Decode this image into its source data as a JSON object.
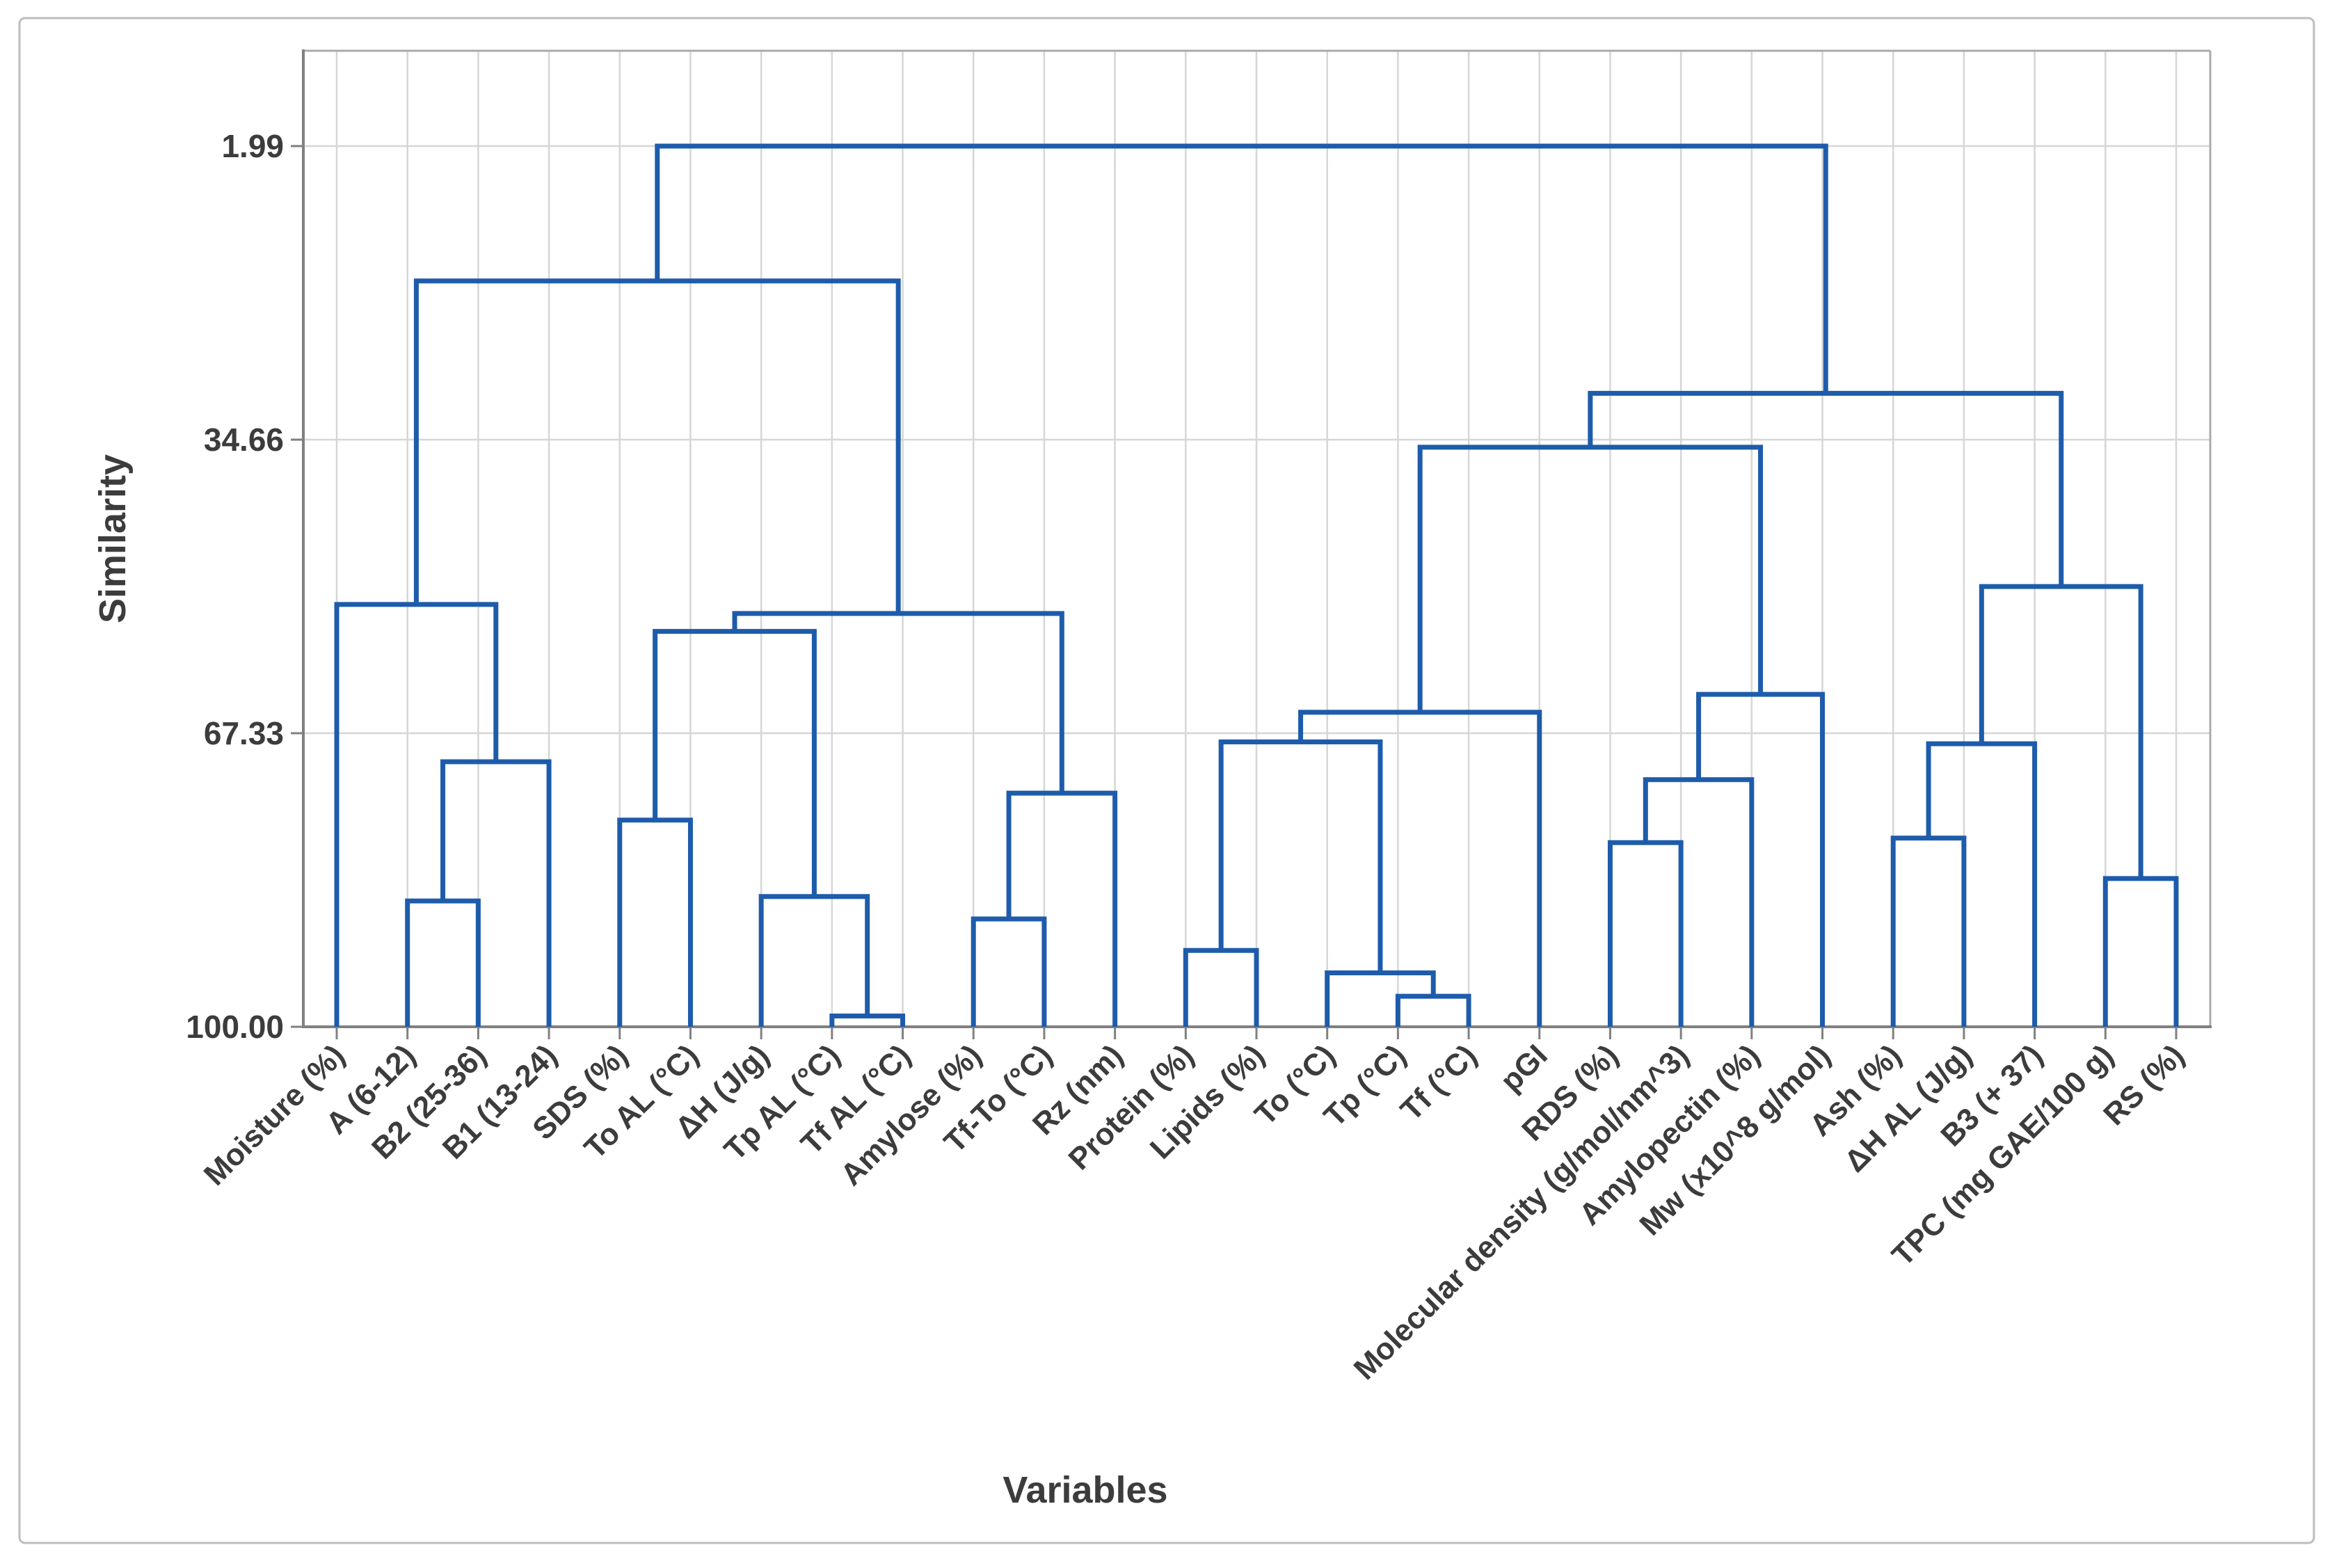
{
  "figure": {
    "kind": "minitab-style dendrogram screenshot",
    "outer_border_color": "#BDBDBD"
  },
  "chart_data": {
    "type": "dendrogram",
    "title": "",
    "xlabel": "Variables",
    "ylabel": "Similarity",
    "axes": {
      "y_inverted": true,
      "y_ticks": [
        1.99,
        34.66,
        67.33,
        100.0
      ],
      "y_tick_labels": [
        "1.99",
        "34.66",
        "67.33",
        "100.00"
      ],
      "y_range_top": 1.99,
      "y_range_bottom": 100.0,
      "grid": "on",
      "x_label_rotation_deg": 45
    },
    "leaves": [
      "Moisture (%)",
      "A (6-12)",
      "B2 (25-36)",
      "B1 (13-24)",
      "SDS (%)",
      "To AL (°C)",
      "ΔH (J/g)",
      "Tp AL (°C)",
      "Tf AL (°C)",
      "Amylose (%)",
      "Tf-To (°C)",
      "Rz (nm)",
      "Protein (%)",
      "Lipids (%)",
      "To (°C)",
      "Tp (°C)",
      "Tf (°C)",
      "pGI",
      "RDS (%)",
      "Molecular density (g/mol/nm^3)",
      "Amylopectin (%)",
      "Mw (x10^8 g/mol)",
      "Ash (%)",
      "ΔH AL (J/g)",
      "B3 (+ 37)",
      "TPC (mg GAE/100 g)",
      "RS (%)"
    ],
    "merges": [
      {
        "id": "m1",
        "a": 1,
        "b": 2,
        "similarity": 86.0
      },
      {
        "id": "m2",
        "a": "m1",
        "b": 3,
        "similarity": 70.5
      },
      {
        "id": "m3",
        "a": 0,
        "b": "m2",
        "similarity": 53.0
      },
      {
        "id": "m4",
        "a": 4,
        "b": 5,
        "similarity": 77.0
      },
      {
        "id": "m5",
        "a": 7,
        "b": 8,
        "similarity": 98.8
      },
      {
        "id": "m6",
        "a": 6,
        "b": "m5",
        "similarity": 85.5
      },
      {
        "id": "m7",
        "a": "m4",
        "b": "m6",
        "similarity": 56.0
      },
      {
        "id": "m8",
        "a": 9,
        "b": 10,
        "similarity": 88.0
      },
      {
        "id": "m9",
        "a": "m8",
        "b": 11,
        "similarity": 74.0
      },
      {
        "id": "m10",
        "a": "m7",
        "b": "m9",
        "similarity": 54.0
      },
      {
        "id": "m11",
        "a": "m3",
        "b": "m10",
        "similarity": 17.0
      },
      {
        "id": "m12",
        "a": 12,
        "b": 13,
        "similarity": 91.5
      },
      {
        "id": "m13",
        "a": 15,
        "b": 16,
        "similarity": 96.6
      },
      {
        "id": "m14",
        "a": 14,
        "b": "m13",
        "similarity": 94.0
      },
      {
        "id": "m15",
        "a": "m12",
        "b": "m14",
        "similarity": 68.3
      },
      {
        "id": "m16",
        "a": "m15",
        "b": 17,
        "similarity": 65.0
      },
      {
        "id": "m17",
        "a": 18,
        "b": 19,
        "similarity": 79.5
      },
      {
        "id": "m18",
        "a": "m17",
        "b": 20,
        "similarity": 72.5
      },
      {
        "id": "m19",
        "a": "m18",
        "b": 21,
        "similarity": 63.0
      },
      {
        "id": "m20",
        "a": "m16",
        "b": "m19",
        "similarity": 35.5
      },
      {
        "id": "m21",
        "a": 22,
        "b": 23,
        "similarity": 79.0
      },
      {
        "id": "m22",
        "a": "m21",
        "b": 24,
        "similarity": 68.5
      },
      {
        "id": "m23",
        "a": 25,
        "b": 26,
        "similarity": 83.5
      },
      {
        "id": "m24",
        "a": "m22",
        "b": "m23",
        "similarity": 51.0
      },
      {
        "id": "m25",
        "a": "m20",
        "b": "m24",
        "similarity": 29.5
      },
      {
        "id": "root",
        "a": "m11",
        "b": "m25",
        "similarity": 1.99
      }
    ],
    "colors": {
      "line": "#1E5CAB",
      "grid": "#D6D6D6",
      "axis_dark": "#808080",
      "axis_light": "#ABABAB",
      "text": "#3C3C3C"
    }
  }
}
